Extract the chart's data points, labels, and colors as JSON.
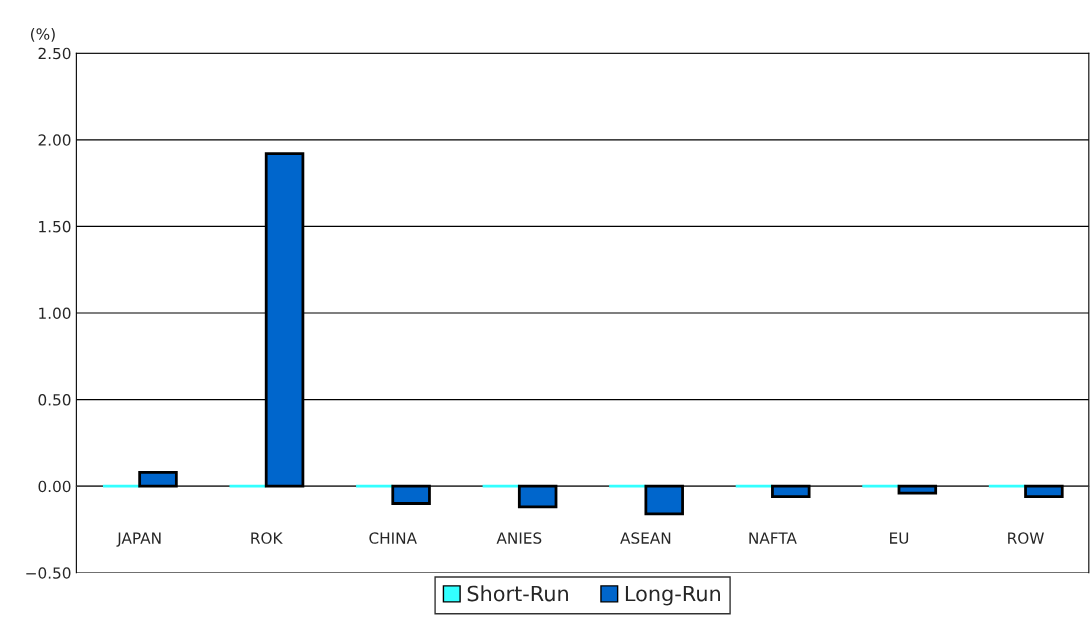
{
  "chart_data": {
    "type": "bar",
    "ylabel": "(%)",
    "categories": [
      "JAPAN",
      "ROK",
      "CHINA",
      "ANIES",
      "ASEAN",
      "NAFTA",
      "EU",
      "ROW"
    ],
    "series": [
      {
        "name": "Short-Run",
        "color": "#33ffff",
        "values": [
          0,
          0,
          0,
          0,
          0,
          0,
          0,
          0
        ]
      },
      {
        "name": "Long-Run",
        "color": "#0066cc",
        "values": [
          0.08,
          1.92,
          -0.1,
          -0.12,
          -0.16,
          -0.06,
          -0.04,
          -0.06
        ]
      }
    ],
    "ylim": [
      -0.5,
      2.5
    ],
    "yticks": [
      {
        "value": -0.5,
        "label": "−0.50"
      },
      {
        "value": 0,
        "label": "0.00"
      },
      {
        "value": 0.5,
        "label": "0.50"
      },
      {
        "value": 1,
        "label": "1.00"
      },
      {
        "value": 1.5,
        "label": "1.50"
      },
      {
        "value": 2,
        "label": "2.00"
      },
      {
        "value": 2.5,
        "label": "2.50"
      }
    ],
    "grid": "y",
    "legend": "bottom"
  }
}
